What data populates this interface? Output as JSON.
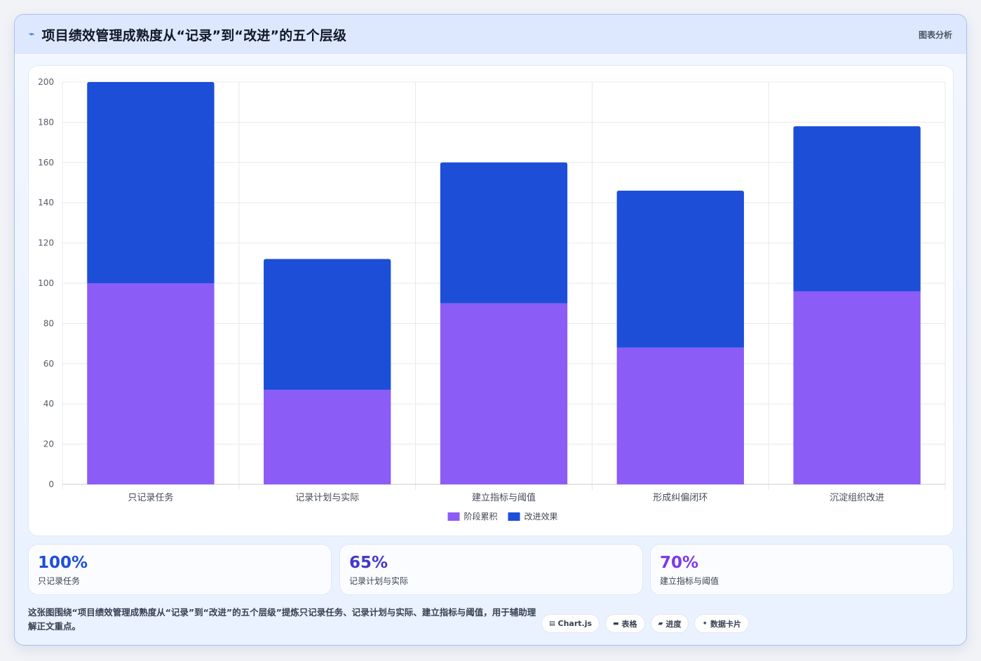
{
  "header": {
    "title": "项目绩效管理成熟度从“记录”到“改进”的五个层级",
    "right_label": "图表分析",
    "icon": "sparkline-icon"
  },
  "chart_data": {
    "type": "bar",
    "stacked": true,
    "categories": [
      "只记录任务",
      "记录计划与实际",
      "建立指标与阈值",
      "形成纠偏闭环",
      "沉淀组织改进"
    ],
    "series": [
      {
        "name": "阶段累积",
        "values": [
          100,
          47,
          90,
          68,
          96
        ],
        "color": "#8b5cf6"
      },
      {
        "name": "改进效果",
        "values": [
          100,
          65,
          70,
          78,
          82
        ],
        "color": "#1d4ed8"
      }
    ],
    "ylim": [
      0,
      200
    ],
    "yticks": [
      0,
      20,
      40,
      60,
      80,
      100,
      120,
      140,
      160,
      180,
      200
    ],
    "grid": true,
    "legend_position": "bottom"
  },
  "kpis": [
    {
      "value": "100%",
      "label": "只记录任务",
      "color": "#1d4ed8"
    },
    {
      "value": "65%",
      "label": "记录计划与实际",
      "color": "#4338ca"
    },
    {
      "value": "70%",
      "label": "建立指标与阈值",
      "color": "#7c3aed"
    }
  ],
  "footer": {
    "text": "这张图围绕“项目绩效管理成熟度从“记录”到“改进”的五个层级”提炼只记录任务、记录计划与实际、建立指标与阈值，用于辅助理解正文重点。",
    "tags": [
      {
        "icon": "chart-icon",
        "glyph": "▤",
        "label": "Chart.js"
      },
      {
        "icon": "table-icon",
        "glyph": "▬",
        "label": "表格"
      },
      {
        "icon": "progress-icon",
        "glyph": "▰",
        "label": "进度"
      },
      {
        "icon": "card-icon",
        "glyph": "✦",
        "label": "数据卡片"
      }
    ]
  }
}
